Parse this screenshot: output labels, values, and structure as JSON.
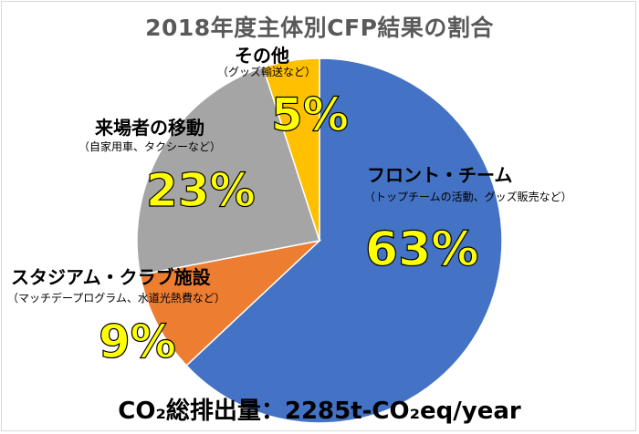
{
  "chart_data": {
    "type": "pie",
    "title": "2018年度主体別CFP結果の割合",
    "total_label": "CO₂総排出量：2285t-CO₂eq/year",
    "slices": [
      {
        "name": "フロント・チーム",
        "note": "（トップチームの活動、グッズ販売など）",
        "percent_label": "63%",
        "value": 63,
        "color": "#4472c4"
      },
      {
        "name": "スタジアム・クラブ施設",
        "note": "（マッチデープログラム、水道光熱費など）",
        "percent_label": "9%",
        "value": 9,
        "color": "#ed7d31"
      },
      {
        "name": "来場者の移動",
        "note": "（自家用車、タクシーなど）",
        "percent_label": "23%",
        "value": 23,
        "color": "#a5a5a5"
      },
      {
        "name": "その他",
        "note": "（グッズ輸送など）",
        "percent_label": "5%",
        "value": 5,
        "color": "#ffc000"
      }
    ]
  }
}
